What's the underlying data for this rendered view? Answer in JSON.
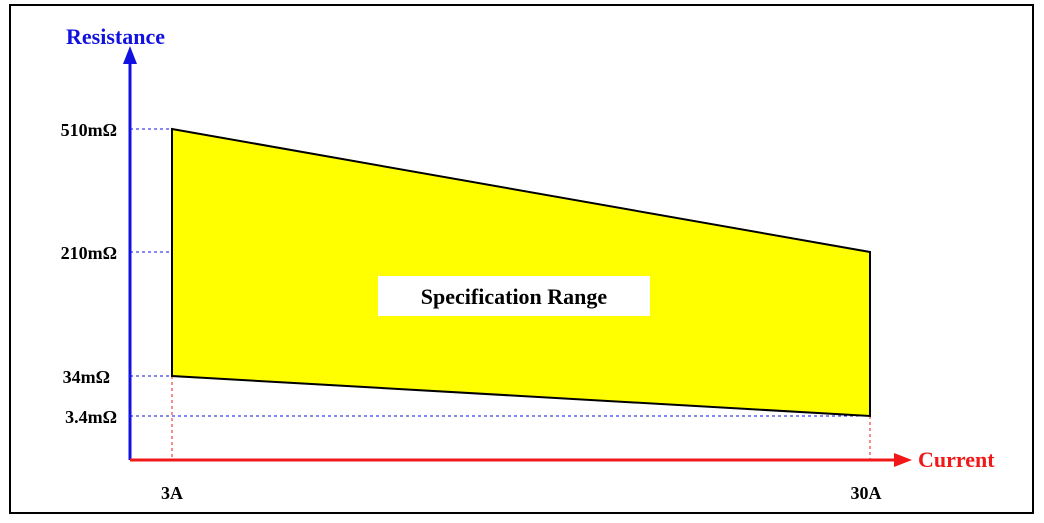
{
  "colors": {
    "resistance_axis": "#1212e0",
    "current_axis": "#f01818",
    "region_fill": "#ffff00",
    "region_stroke": "#000000",
    "text": "#000000"
  },
  "chart_data": {
    "type": "area",
    "region_label": "Specification Range",
    "y_axis": {
      "title": "Resistance",
      "ticks": [
        {
          "id": "r510",
          "label": "510mΩ"
        },
        {
          "id": "r210",
          "label": "210mΩ"
        },
        {
          "id": "r34",
          "label": "34mΩ"
        },
        {
          "id": "r3_4",
          "label": "3.4mΩ"
        }
      ]
    },
    "x_axis": {
      "title": "Current",
      "ticks": [
        {
          "id": "i3",
          "label": "3A"
        },
        {
          "id": "i30",
          "label": "30A"
        }
      ]
    },
    "boundary": [
      {
        "current": "3A",
        "resistance": "510mΩ"
      },
      {
        "current": "30A",
        "resistance": "210mΩ"
      },
      {
        "current": "30A",
        "resistance": "3.4mΩ"
      },
      {
        "current": "3A",
        "resistance": "34mΩ"
      }
    ]
  }
}
